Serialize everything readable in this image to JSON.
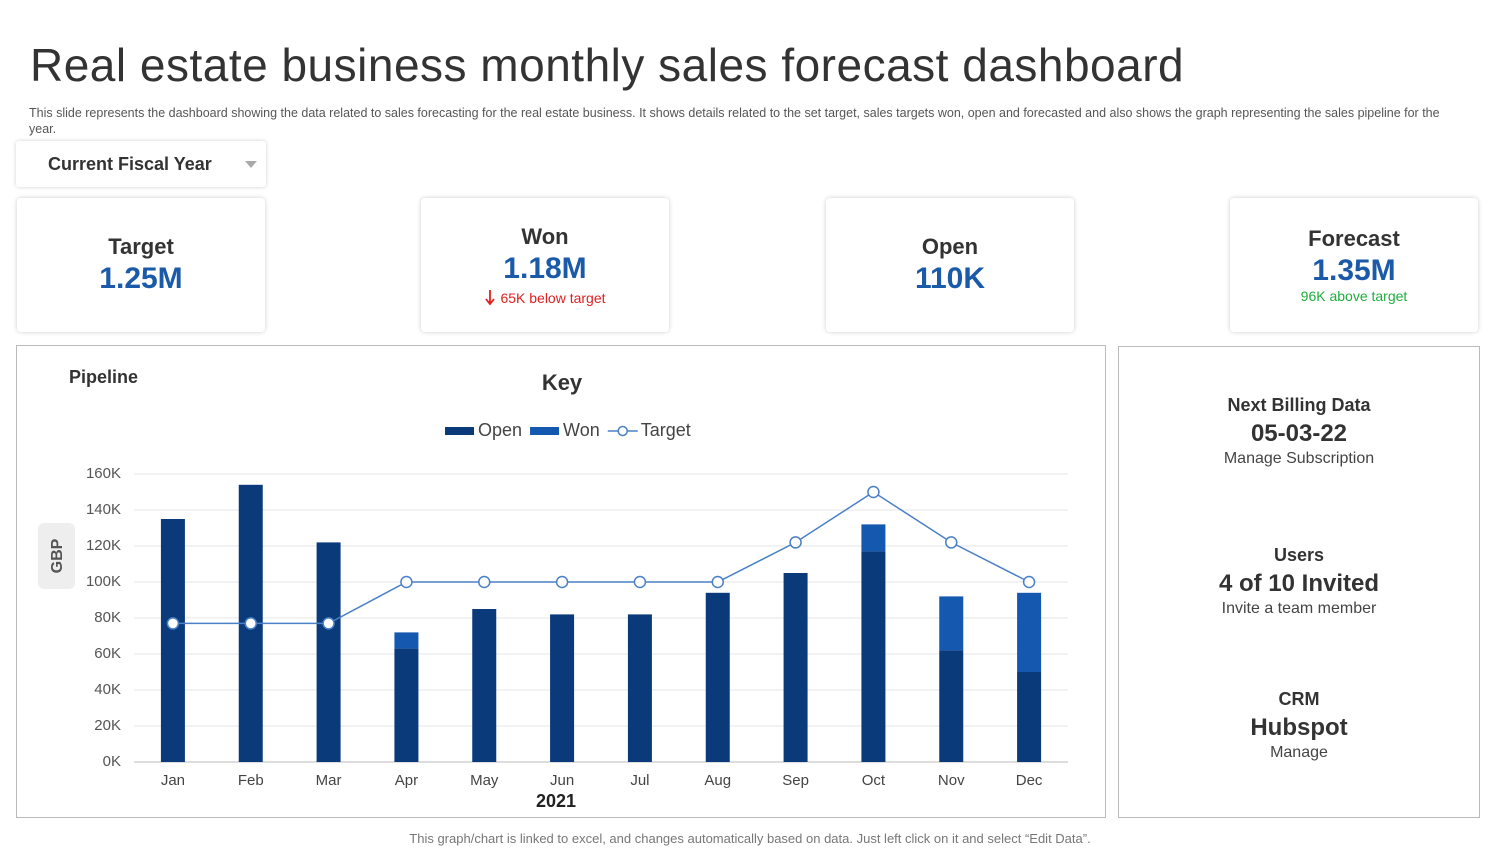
{
  "header": {
    "title": "Real estate  business monthly sales forecast dashboard",
    "description": "This slide represents the dashboard showing the data related to sales forecasting for the real estate business. It shows details related to the set target,  sales targets won, open and forecasted and also shows the graph representing the sales pipeline for the year."
  },
  "filter": {
    "label": "Current Fiscal Year"
  },
  "kpis": [
    {
      "label": "Target",
      "value": "1.25M"
    },
    {
      "label": "Won",
      "value": "1.18M",
      "note": "65K below target"
    },
    {
      "label": "Open",
      "value": "110K"
    },
    {
      "label": "Forecast",
      "value": "1.35M",
      "note": "96K above  target"
    }
  ],
  "chart_data": {
    "type": "stacked_bar_line",
    "title": "Pipeline",
    "legend_title": "Key",
    "y_label": "GBP",
    "x_label": "2021",
    "categories": [
      "Jan",
      "Feb",
      "Mar",
      "Apr",
      "May",
      "Jun",
      "Jul",
      "Aug",
      "Sep",
      "Oct",
      "Nov",
      "Dec"
    ],
    "series": [
      {
        "name": "Open",
        "color": "#0b3a7a",
        "kind": "bar",
        "values": [
          135,
          154,
          122,
          63,
          85,
          82,
          82,
          94,
          105,
          117,
          62,
          50
        ]
      },
      {
        "name": "Won",
        "color": "#1558b0",
        "kind": "bar",
        "values": [
          0,
          0,
          0,
          9,
          0,
          0,
          0,
          0,
          0,
          15,
          30,
          44
        ]
      },
      {
        "name": "Target",
        "color": "#4a80c6",
        "kind": "line",
        "values": [
          77,
          77,
          77,
          100,
          100,
          100,
          100,
          100,
          122,
          150,
          122,
          100
        ]
      }
    ],
    "ylim": [
      0,
      160
    ],
    "yticks": [
      {
        "value": 0,
        "label": "0K"
      },
      {
        "value": 20,
        "label": "20K"
      },
      {
        "value": 40,
        "label": "40K"
      },
      {
        "value": 60,
        "label": "60K"
      },
      {
        "value": 80,
        "label": "80K"
      },
      {
        "value": 100,
        "label": "100K"
      },
      {
        "value": 120,
        "label": "120K"
      },
      {
        "value": 140,
        "label": "140K"
      },
      {
        "value": 160,
        "label": "160K"
      }
    ],
    "grid": true
  },
  "side_panel": [
    {
      "heading": "Next Billing Data",
      "value": "05-03-22",
      "link": "Manage Subscription"
    },
    {
      "heading": "Users",
      "value": "4 of 10 Invited",
      "link": "Invite  a team member"
    },
    {
      "heading": "CRM",
      "value": "Hubspot",
      "link": "Manage"
    }
  ],
  "footer": "This graph/chart is linked to excel,  and changes automatically based on data. Just left click on it and select “Edit Data”."
}
